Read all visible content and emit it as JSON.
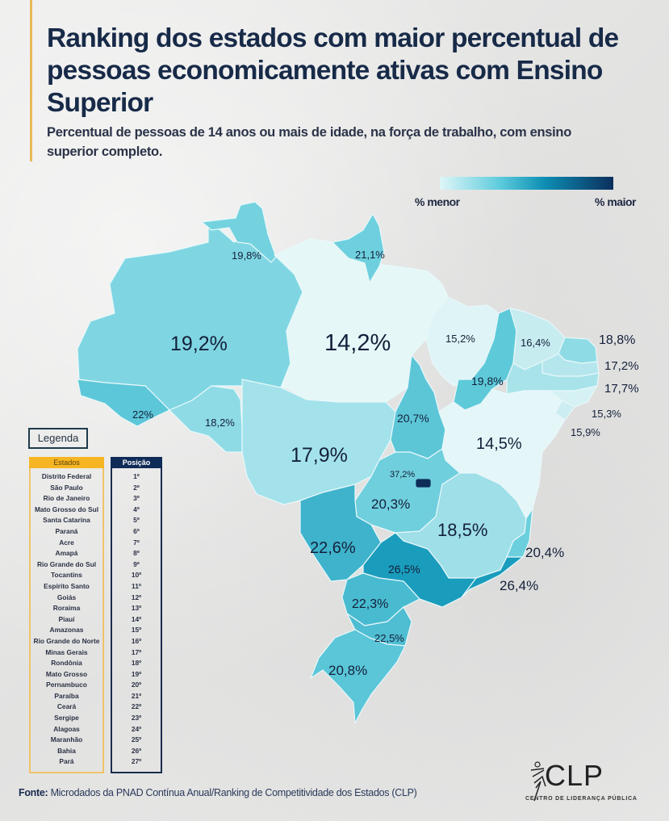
{
  "header": {
    "title": "Ranking dos estados com maior percentual de pessoas economicamente ativas com Ensino Superior",
    "subtitle": "Percentual de pessoas de 14 anos ou mais de idade, na força de trabalho, com ensino superior completo."
  },
  "scale": {
    "min_label": "% menor",
    "max_label": "% maior",
    "color_min": "#dff6f8",
    "color_max": "#0b2f5c"
  },
  "legend": {
    "tag": "Legenda",
    "states_header": "Estados",
    "position_header": "Posição",
    "rows": [
      {
        "state": "Distrito Federal",
        "pos": "1º"
      },
      {
        "state": "São Paulo",
        "pos": "2º"
      },
      {
        "state": "Rio de Janeiro",
        "pos": "3º"
      },
      {
        "state": "Mato Grosso do Sul",
        "pos": "4º"
      },
      {
        "state": "Santa Catarina",
        "pos": "5º"
      },
      {
        "state": "Paraná",
        "pos": "6º"
      },
      {
        "state": "Acre",
        "pos": "7º"
      },
      {
        "state": "Amapá",
        "pos": "8º"
      },
      {
        "state": "Rio Grande do Sul",
        "pos": "9º"
      },
      {
        "state": "Tocantins",
        "pos": "10º"
      },
      {
        "state": "Espírito Santo",
        "pos": "11º"
      },
      {
        "state": "Goiás",
        "pos": "12º"
      },
      {
        "state": "Roraima",
        "pos": "13º"
      },
      {
        "state": "Piauí",
        "pos": "14º"
      },
      {
        "state": "Amazonas",
        "pos": "15º"
      },
      {
        "state": "Rio Grande do Norte",
        "pos": "16º"
      },
      {
        "state": "Minas Gerais",
        "pos": "17º"
      },
      {
        "state": "Rondônia",
        "pos": "18º"
      },
      {
        "state": "Mato Grosso",
        "pos": "19º"
      },
      {
        "state": "Pernambuco",
        "pos": "20º"
      },
      {
        "state": "Paraíba",
        "pos": "21º"
      },
      {
        "state": "Ceará",
        "pos": "22º"
      },
      {
        "state": "Sergipe",
        "pos": "23º"
      },
      {
        "state": "Alagoas",
        "pos": "24º"
      },
      {
        "state": "Maranhão",
        "pos": "25º"
      },
      {
        "state": "Bahia",
        "pos": "26º"
      },
      {
        "state": "Pará",
        "pos": "27º"
      }
    ]
  },
  "footer": {
    "source_label": "Fonte:",
    "source_text": " Microdados da PNAD Contínua Anual/Ranking de Competitividade dos Estados (CLP)",
    "logo_text": "CLP",
    "logo_sub": "CENTRO DE LIDERANÇA PÚBLICA"
  },
  "map_labels": {
    "RR": "19,8%",
    "AP": "21,1%",
    "AM": "19,2%",
    "PA": "14,2%",
    "AC": "22%",
    "RO": "18,2%",
    "MT": "17,9%",
    "MA": "15,2%",
    "PI": "19,8%",
    "CE": "16,4%",
    "RN": "18,8%",
    "PB": "17,2%",
    "PE": "17,7%",
    "AL": "15,3%",
    "SE": "15,9%",
    "TO": "20,7%",
    "BA": "14,5%",
    "DF": "37,2%",
    "GO": "20,3%",
    "MG": "18,5%",
    "ES": "20,4%",
    "MS": "22,6%",
    "SP": "26,5%",
    "RJ": "26,4%",
    "PR": "22,3%",
    "SC": "22,5%",
    "RS": "20,8%"
  },
  "chart_data": {
    "type": "choropleth-map",
    "title": "Ranking dos estados com maior percentual de pessoas economicamente ativas com Ensino Superior",
    "subtitle": "Percentual de pessoas de 14 anos ou mais de idade, na força de trabalho, com ensino superior completo.",
    "unit": "%",
    "color_scale": {
      "low_label": "% menor",
      "high_label": "% maior"
    },
    "categories": [
      "Distrito Federal",
      "São Paulo",
      "Rio de Janeiro",
      "Mato Grosso do Sul",
      "Santa Catarina",
      "Paraná",
      "Acre",
      "Amapá",
      "Rio Grande do Sul",
      "Tocantins",
      "Espírito Santo",
      "Goiás",
      "Roraima",
      "Piauí",
      "Amazonas",
      "Rio Grande do Norte",
      "Minas Gerais",
      "Rondônia",
      "Mato Grosso",
      "Pernambuco",
      "Paraíba",
      "Ceará",
      "Sergipe",
      "Alagoas",
      "Maranhão",
      "Bahia",
      "Pará"
    ],
    "values": [
      37.2,
      26.5,
      26.4,
      22.6,
      22.5,
      22.3,
      22.0,
      21.1,
      20.8,
      20.7,
      20.4,
      20.3,
      19.8,
      19.8,
      19.2,
      18.8,
      18.5,
      18.2,
      17.9,
      17.7,
      17.2,
      16.4,
      15.9,
      15.3,
      15.2,
      14.5,
      14.2
    ],
    "ranks": [
      1,
      2,
      3,
      4,
      5,
      6,
      7,
      8,
      9,
      10,
      11,
      12,
      13,
      14,
      15,
      16,
      17,
      18,
      19,
      20,
      21,
      22,
      23,
      24,
      25,
      26,
      27
    ],
    "source": "Microdados da PNAD Contínua Anual/Ranking de Competitividade dos Estados (CLP)"
  }
}
